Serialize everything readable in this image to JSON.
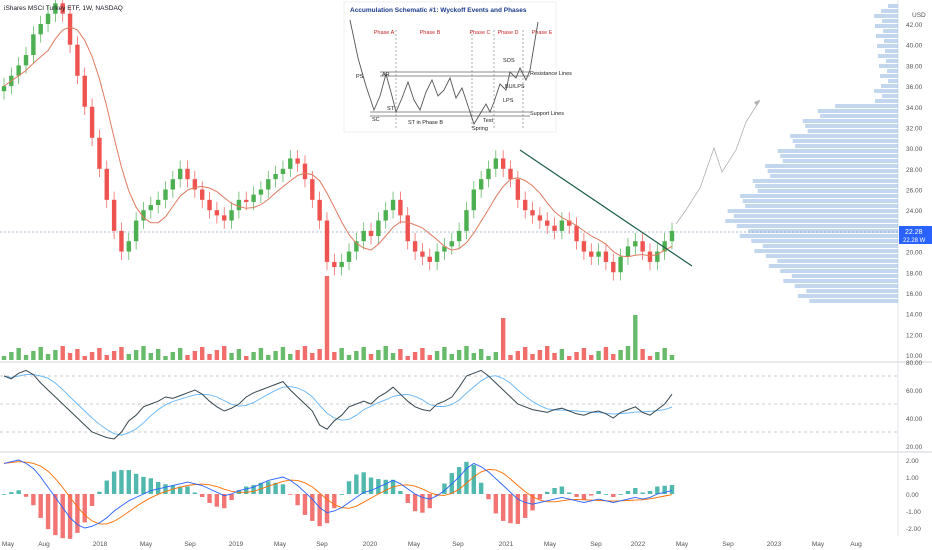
{
  "header": {
    "symbol_line": "iShares MSCI Turkey ETF, 1W, NASDAQ"
  },
  "colors": {
    "up": "#26a69a",
    "up_vol": "#4caf50",
    "down": "#ef5350",
    "ma": "#e07a5f",
    "rsi": "#37474f",
    "rsi_ma": "#64b5f6",
    "macd": "#2962ff",
    "signal": "#ff6d00",
    "trend": "#1b5e4a",
    "projection": "#b0b0b0",
    "price_tag": "#2962ff",
    "profile": "#90b4e0"
  },
  "price_tag": {
    "value": "22.28",
    "secondary": "22.28 W"
  },
  "price_axis": {
    "ticks": [
      "42.00",
      "40.00",
      "38.00",
      "36.00",
      "34.00",
      "32.00",
      "30.00",
      "28.00",
      "26.00",
      "24.00",
      "22.00",
      "20.00",
      "18.00",
      "16.00",
      "14.00",
      "12.00",
      "10.00"
    ],
    "top_label": "USD"
  },
  "rsi_axis": {
    "ticks": [
      "80.00",
      "60.00",
      "40.00",
      "20.00"
    ]
  },
  "macd_axis": {
    "ticks": [
      "2.00",
      "1.00",
      "0.00",
      "-1.00",
      "-2.00"
    ]
  },
  "time_axis": {
    "labels": [
      "May",
      "Aug",
      "2018",
      "May",
      "Sep",
      "2019",
      "May",
      "Sep",
      "2020",
      "May",
      "Sep",
      "2021",
      "May",
      "Sep",
      "2022",
      "May",
      "Sep",
      "2023",
      "May",
      "Aug"
    ]
  },
  "inset": {
    "title": "Accumulation Schematic #1: Wyckoff Events and Phases",
    "phases": [
      "Phase A",
      "Phase B",
      "Phase C",
      "Phase D",
      "Phase E"
    ],
    "events": [
      "PS",
      "SC",
      "AR",
      "ST",
      "ST in Phase B",
      "Spring",
      "Test",
      "SOS",
      "LPS",
      "BU/LPS"
    ],
    "lines": [
      "Resistance Lines",
      "Support Lines"
    ]
  },
  "chart_data": {
    "type": "candlestick",
    "series": [
      {
        "name": "price",
        "values": [
          36,
          37,
          38,
          39,
          41,
          42,
          43,
          44,
          43,
          40,
          37,
          34,
          31,
          28,
          25,
          22,
          20,
          21,
          23,
          24,
          24.5,
          25,
          26,
          27,
          28,
          27,
          26,
          25,
          24,
          23.5,
          23,
          24,
          25,
          24.8,
          25.5,
          26,
          27,
          27.5,
          28,
          29,
          28.5,
          27,
          25,
          23,
          19,
          18.5,
          19,
          20,
          21,
          22,
          21.5,
          23,
          24,
          25,
          23.5,
          21,
          20,
          19.5,
          19,
          20,
          20.5,
          21,
          22,
          24,
          26,
          27,
          28,
          29,
          28,
          27,
          25,
          24,
          23.5,
          23,
          22.5,
          22,
          23,
          22.5,
          21,
          20,
          19.5,
          20,
          19,
          18,
          19.5,
          20.5,
          21,
          20,
          19,
          20,
          21,
          22
        ]
      },
      {
        "name": "rsi",
        "values": [
          70,
          68,
          72,
          74,
          71,
          65,
          60,
          55,
          50,
          45,
          40,
          35,
          30,
          28,
          26,
          25,
          30,
          38,
          42,
          48,
          50,
          52,
          55,
          54,
          56,
          58,
          60,
          57,
          52,
          48,
          45,
          47,
          50,
          55,
          58,
          60,
          62,
          64,
          66,
          60,
          55,
          50,
          45,
          35,
          32,
          38,
          42,
          48,
          50,
          52,
          50,
          55,
          58,
          62,
          57,
          52,
          48,
          46,
          45,
          50,
          52,
          55,
          62,
          70,
          72,
          74,
          70,
          65,
          60,
          55,
          50,
          48,
          46,
          45,
          44,
          46,
          47,
          45,
          43,
          42,
          44,
          45,
          43,
          40,
          44,
          46,
          48,
          44,
          42,
          46,
          50,
          57
        ]
      },
      {
        "name": "macd",
        "values": [
          1.8,
          1.9,
          2.0,
          1.8,
          1.5,
          1.0,
          0.4,
          -0.2,
          -0.8,
          -1.4,
          -1.8,
          -2.0,
          -1.9,
          -1.7,
          -1.4,
          -1.0,
          -0.7,
          -0.4,
          -0.2,
          0.0,
          0.2,
          0.3,
          0.4,
          0.5,
          0.6,
          0.7,
          0.6,
          0.5,
          0.3,
          0.1,
          -0.1,
          0.0,
          0.2,
          0.3,
          0.4,
          0.6,
          0.8,
          0.9,
          1.0,
          0.8,
          0.5,
          0.1,
          -0.3,
          -0.8,
          -1.1,
          -1.0,
          -0.8,
          -0.5,
          -0.2,
          0.1,
          0.2,
          0.4,
          0.6,
          0.8,
          0.6,
          0.3,
          0.0,
          -0.2,
          -0.3,
          -0.1,
          0.2,
          0.6,
          1.0,
          1.5,
          1.8,
          1.6,
          1.3,
          0.9,
          0.5,
          0.1,
          -0.3,
          -0.5,
          -0.6,
          -0.5,
          -0.4,
          -0.3,
          -0.2,
          -0.3,
          -0.4,
          -0.5,
          -0.4,
          -0.3,
          -0.4,
          -0.5,
          -0.4,
          -0.3,
          -0.2,
          -0.3,
          -0.2,
          0.0,
          0.1,
          0.2
        ]
      }
    ],
    "y_range_price": [
      10,
      43
    ],
    "y_range_rsi": [
      18,
      82
    ],
    "y_range_macd": [
      -2.2,
      2.2
    ]
  }
}
